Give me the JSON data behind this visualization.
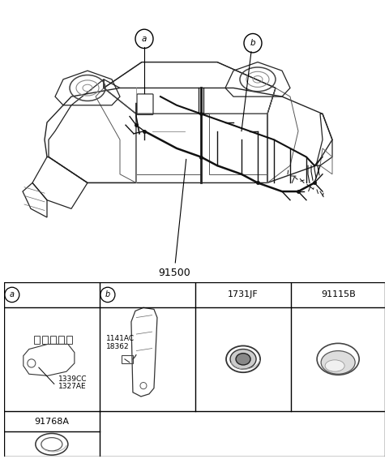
{
  "background_color": "#ffffff",
  "part_number_main": "91500",
  "label_a": "a",
  "label_b": "b",
  "cell_a_code1": "1339CC",
  "cell_a_code2": "1327AE",
  "cell_b_code1": "1141AC",
  "cell_b_code2": "18362",
  "cell_c_label": "1731JF",
  "cell_d_label": "91115B",
  "cell_e_label": "91768A",
  "line_color": "#222222",
  "text_color": "#000000"
}
